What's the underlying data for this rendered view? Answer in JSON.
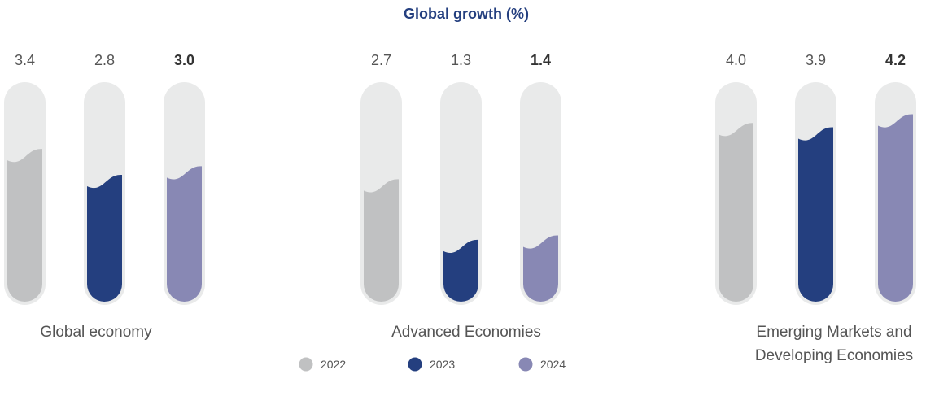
{
  "chart_data": {
    "type": "bar",
    "title": "Global growth (%)",
    "categories": [
      "Global economy",
      "Advanced Economies",
      "Emerging Markets and Developing Economies"
    ],
    "category_lines": [
      [
        "Global economy"
      ],
      [
        "Advanced Economies"
      ],
      [
        "Emerging Markets and",
        "Developing Economies"
      ]
    ],
    "series": [
      {
        "name": "2022",
        "color": "#c0c1c2",
        "values": [
          3.4,
          2.7,
          4.0
        ],
        "labels": [
          "3.4",
          "2.7",
          "4.0"
        ],
        "emphasis": false
      },
      {
        "name": "2023",
        "color": "#243f7f",
        "values": [
          2.8,
          1.3,
          3.9
        ],
        "labels": [
          "2.8",
          "1.3",
          "3.9"
        ],
        "emphasis": false
      },
      {
        "name": "2024",
        "color": "#8888b4",
        "values": [
          3.0,
          1.4,
          4.2
        ],
        "labels": [
          "3.0",
          "1.4",
          "4.2"
        ],
        "emphasis": true
      }
    ],
    "ylim": [
      0,
      5
    ],
    "grid": false,
    "legend_position": "bottom-center",
    "track_color": "#e9eaea"
  }
}
